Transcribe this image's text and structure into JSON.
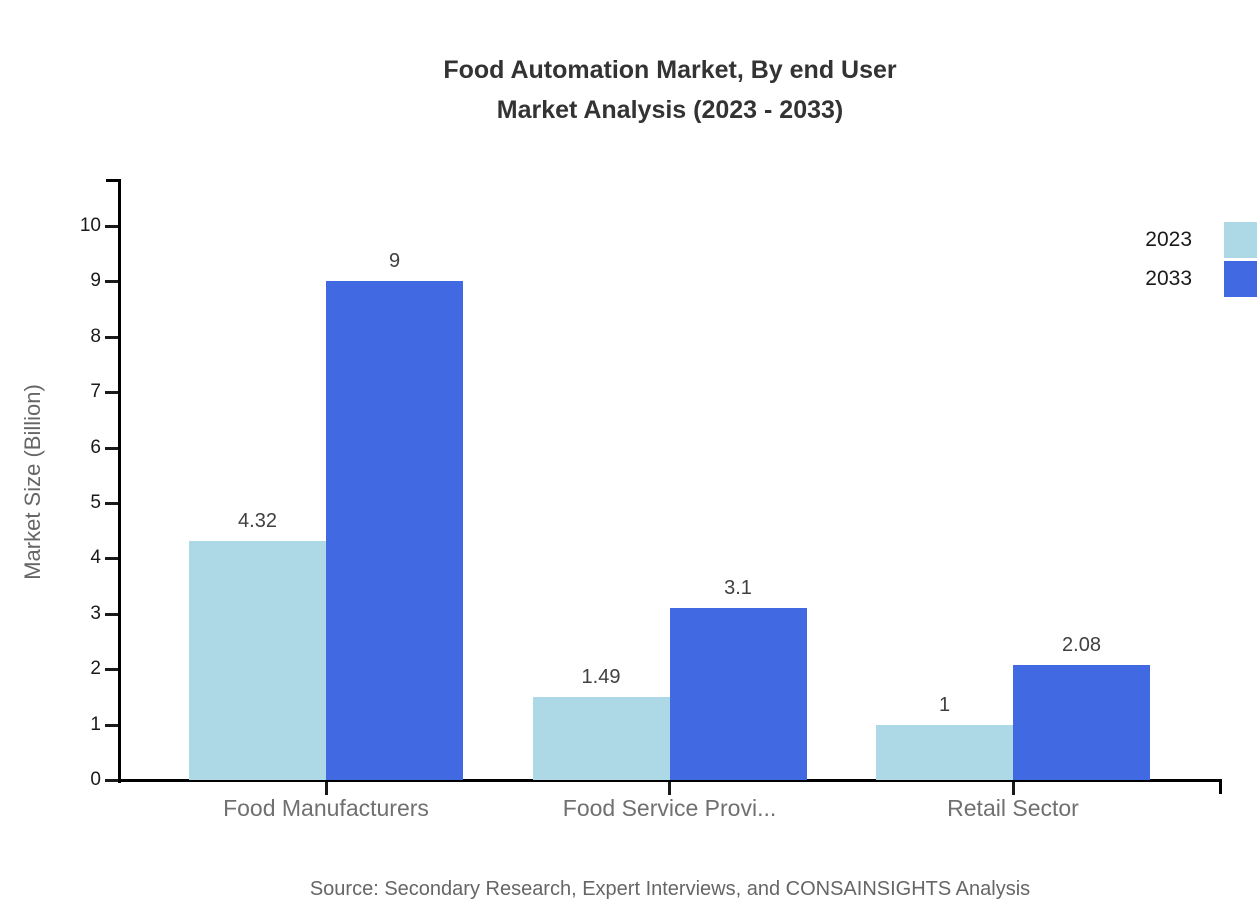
{
  "chart_data": {
    "type": "bar",
    "title_line1": "Food Automation Market, By end User",
    "title_line2": "Market Analysis (2023 - 2033)",
    "ylabel": "Market Size (Billion)",
    "xlabel": "",
    "categories": [
      "Food Manufacturers",
      "Food Service Provi...",
      "Retail Sector"
    ],
    "series": [
      {
        "name": "2023",
        "color": "#ADD8E6",
        "values": [
          4.32,
          1.49,
          1
        ]
      },
      {
        "name": "2033",
        "color": "#4169E1",
        "values": [
          9,
          3.1,
          2.08
        ]
      }
    ],
    "ylim": [
      0,
      10
    ],
    "yticks": [
      0,
      1,
      2,
      3,
      4,
      5,
      6,
      7,
      8,
      9,
      10
    ],
    "grid": false,
    "legend_position": "top-right",
    "source": "Source: Secondary Research, Expert Interviews, and CONSAINSIGHTS Analysis"
  },
  "colors": {
    "background": "#ffffff",
    "axis": "#000000",
    "title_text": "#333333",
    "ytick_text": "#1a1a1a",
    "category_text": "#707070",
    "value_text": "#404040",
    "muted_text": "#666666",
    "series_2023": "#ADD8E6",
    "series_2033": "#4169E1"
  }
}
